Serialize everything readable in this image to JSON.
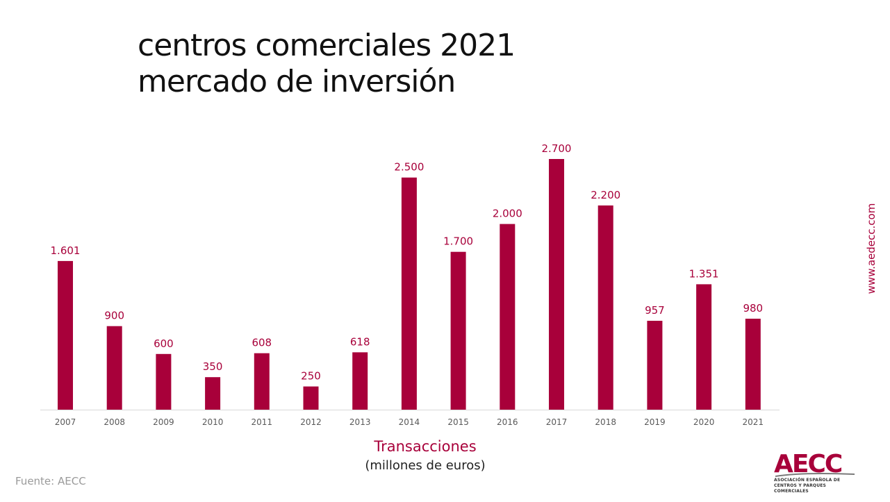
{
  "title_lines": [
    "centros comerciales 2021",
    "mercado de inversión"
  ],
  "colors": {
    "accent": "#a8003a",
    "axis": "#d9d9d9"
  },
  "chart_data": {
    "type": "bar",
    "categories": [
      "2007",
      "2008",
      "2009",
      "2010",
      "2011",
      "2012",
      "2013",
      "2014",
      "2015",
      "2016",
      "2017",
      "2018",
      "2019",
      "2020",
      "2021"
    ],
    "values": [
      1601,
      900,
      600,
      350,
      608,
      250,
      618,
      2500,
      1700,
      2000,
      2700,
      2200,
      957,
      1351,
      980
    ],
    "data_labels": [
      "1.601",
      "900",
      "600",
      "350",
      "608",
      "250",
      "618",
      "2.500",
      "1.700",
      "2.000",
      "2.700",
      "2.200",
      "957",
      "1.351",
      "980"
    ],
    "ylim": [
      0,
      2700
    ],
    "grid": false,
    "legend": "none",
    "xlabel": "Transacciones",
    "xlabel_sub": "(millones de euros)"
  },
  "source": "Fuente: AECC",
  "website": "www.aedecc.com",
  "logo": {
    "word": "AECC",
    "sub_line1": "ASOCIACIÓN ESPAÑOLA DE",
    "sub_line2": "CENTROS Y PARQUES COMERCIALES"
  }
}
